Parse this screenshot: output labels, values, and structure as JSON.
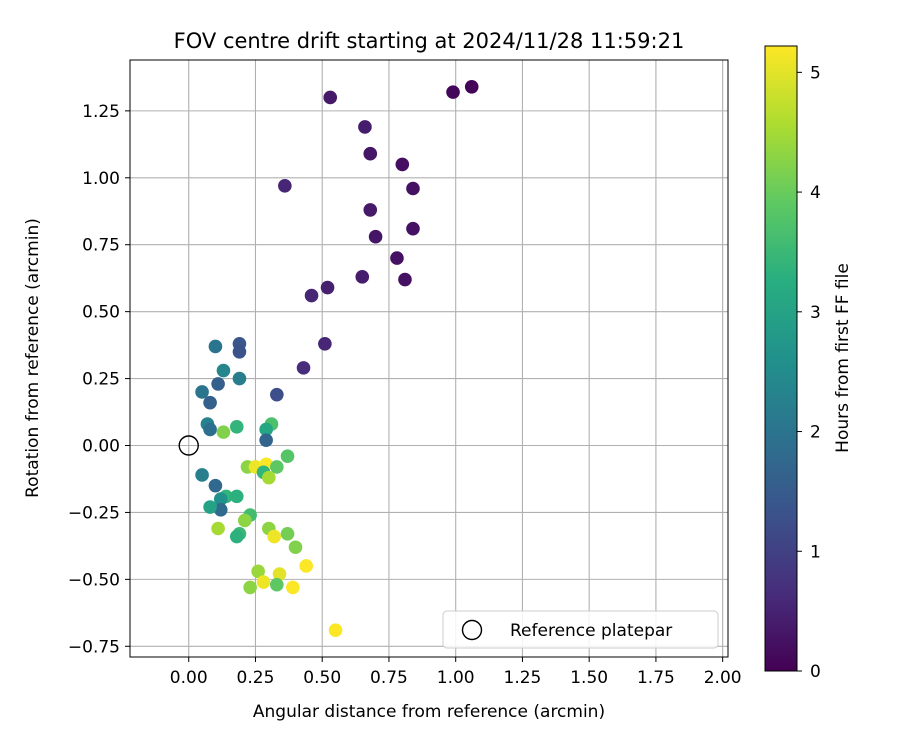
{
  "chart_data": {
    "type": "scatter",
    "title": "FOV centre drift starting at 2024/11/28 11:59:21",
    "xlabel": "Angular distance from reference (arcmin)",
    "ylabel": "Rotation from reference (arcmin)",
    "xlim": [
      -0.22,
      2.02
    ],
    "ylim": [
      -0.79,
      1.44
    ],
    "x_ticks": [
      0.0,
      0.25,
      0.5,
      0.75,
      1.0,
      1.25,
      1.5,
      1.75,
      2.0
    ],
    "x_tick_labels": [
      "0.00",
      "0.25",
      "0.50",
      "0.75",
      "1.00",
      "1.25",
      "1.50",
      "1.75",
      "2.00"
    ],
    "y_ticks": [
      -0.75,
      -0.5,
      -0.25,
      0.0,
      0.25,
      0.5,
      0.75,
      1.0,
      1.25
    ],
    "y_tick_labels": [
      "−0.75",
      "−0.50",
      "−0.25",
      "0.00",
      "0.25",
      "0.50",
      "0.75",
      "1.00",
      "1.25"
    ],
    "grid": true,
    "legend": {
      "position": "lower-right",
      "entries": [
        "Reference platepar"
      ]
    },
    "colorbar": {
      "label": "Hours from first FF file",
      "colormap": "viridis",
      "range": [
        0,
        5.22
      ],
      "ticks": [
        0,
        1,
        2,
        3,
        4,
        5
      ],
      "tick_labels": [
        "0",
        "1",
        "2",
        "3",
        "4",
        "5"
      ]
    },
    "reference_point": {
      "x": 0.0,
      "y": 0.0
    },
    "points": [
      {
        "x": 1.06,
        "y": 1.34,
        "hours": 0.05
      },
      {
        "x": 0.99,
        "y": 1.32,
        "hours": 0.1
      },
      {
        "x": 0.53,
        "y": 1.3,
        "hours": 0.35
      },
      {
        "x": 0.66,
        "y": 1.19,
        "hours": 0.4
      },
      {
        "x": 0.68,
        "y": 1.09,
        "hours": 0.3
      },
      {
        "x": 0.8,
        "y": 1.05,
        "hours": 0.2
      },
      {
        "x": 0.36,
        "y": 0.97,
        "hours": 0.55
      },
      {
        "x": 0.84,
        "y": 0.96,
        "hours": 0.25
      },
      {
        "x": 0.68,
        "y": 0.88,
        "hours": 0.35
      },
      {
        "x": 0.84,
        "y": 0.81,
        "hours": 0.25
      },
      {
        "x": 0.7,
        "y": 0.78,
        "hours": 0.3
      },
      {
        "x": 0.78,
        "y": 0.7,
        "hours": 0.25
      },
      {
        "x": 0.65,
        "y": 0.63,
        "hours": 0.4
      },
      {
        "x": 0.81,
        "y": 0.62,
        "hours": 0.25
      },
      {
        "x": 0.52,
        "y": 0.59,
        "hours": 0.45
      },
      {
        "x": 0.46,
        "y": 0.56,
        "hours": 0.55
      },
      {
        "x": 0.51,
        "y": 0.38,
        "hours": 0.55
      },
      {
        "x": 0.43,
        "y": 0.29,
        "hours": 0.65
      },
      {
        "x": 0.1,
        "y": 0.37,
        "hours": 2.0
      },
      {
        "x": 0.19,
        "y": 0.38,
        "hours": 1.4
      },
      {
        "x": 0.19,
        "y": 0.35,
        "hours": 1.3
      },
      {
        "x": 0.13,
        "y": 0.28,
        "hours": 2.4
      },
      {
        "x": 0.19,
        "y": 0.25,
        "hours": 2.2
      },
      {
        "x": 0.11,
        "y": 0.23,
        "hours": 1.6
      },
      {
        "x": 0.05,
        "y": 0.2,
        "hours": 2.0
      },
      {
        "x": 0.33,
        "y": 0.19,
        "hours": 1.25
      },
      {
        "x": 0.08,
        "y": 0.16,
        "hours": 1.6
      },
      {
        "x": 0.07,
        "y": 0.08,
        "hours": 2.3
      },
      {
        "x": 0.08,
        "y": 0.06,
        "hours": 1.9
      },
      {
        "x": 0.13,
        "y": 0.05,
        "hours": 4.2
      },
      {
        "x": 0.18,
        "y": 0.07,
        "hours": 3.4
      },
      {
        "x": 0.31,
        "y": 0.08,
        "hours": 3.7
      },
      {
        "x": 0.29,
        "y": 0.06,
        "hours": 3.1
      },
      {
        "x": 0.29,
        "y": 0.02,
        "hours": 1.7
      },
      {
        "x": 0.37,
        "y": -0.04,
        "hours": 3.8
      },
      {
        "x": 0.22,
        "y": -0.08,
        "hours": 4.3
      },
      {
        "x": 0.25,
        "y": -0.08,
        "hours": 5.1
      },
      {
        "x": 0.29,
        "y": -0.07,
        "hours": 5.2
      },
      {
        "x": 0.33,
        "y": -0.08,
        "hours": 3.9
      },
      {
        "x": 0.28,
        "y": -0.1,
        "hours": 3.4
      },
      {
        "x": 0.3,
        "y": -0.12,
        "hours": 4.5
      },
      {
        "x": 0.05,
        "y": -0.11,
        "hours": 2.2
      },
      {
        "x": 0.1,
        "y": -0.15,
        "hours": 1.75
      },
      {
        "x": 0.14,
        "y": -0.19,
        "hours": 3.4
      },
      {
        "x": 0.18,
        "y": -0.19,
        "hours": 3.3
      },
      {
        "x": 0.12,
        "y": -0.2,
        "hours": 2.6
      },
      {
        "x": 0.12,
        "y": -0.24,
        "hours": 1.8
      },
      {
        "x": 0.08,
        "y": -0.23,
        "hours": 3.0
      },
      {
        "x": 0.23,
        "y": -0.26,
        "hours": 3.6
      },
      {
        "x": 0.21,
        "y": -0.28,
        "hours": 4.3
      },
      {
        "x": 0.11,
        "y": -0.31,
        "hours": 4.5
      },
      {
        "x": 0.3,
        "y": -0.31,
        "hours": 4.3
      },
      {
        "x": 0.19,
        "y": -0.33,
        "hours": 3.5
      },
      {
        "x": 0.18,
        "y": -0.34,
        "hours": 3.3
      },
      {
        "x": 0.32,
        "y": -0.34,
        "hours": 5.1
      },
      {
        "x": 0.37,
        "y": -0.33,
        "hours": 4.1
      },
      {
        "x": 0.4,
        "y": -0.38,
        "hours": 4.2
      },
      {
        "x": 0.44,
        "y": -0.45,
        "hours": 5.2
      },
      {
        "x": 0.26,
        "y": -0.47,
        "hours": 4.4
      },
      {
        "x": 0.34,
        "y": -0.48,
        "hours": 5.0
      },
      {
        "x": 0.28,
        "y": -0.51,
        "hours": 5.1
      },
      {
        "x": 0.33,
        "y": -0.52,
        "hours": 3.9
      },
      {
        "x": 0.23,
        "y": -0.53,
        "hours": 4.3
      },
      {
        "x": 0.39,
        "y": -0.53,
        "hours": 5.2
      },
      {
        "x": 0.55,
        "y": -0.69,
        "hours": 5.2
      }
    ]
  }
}
